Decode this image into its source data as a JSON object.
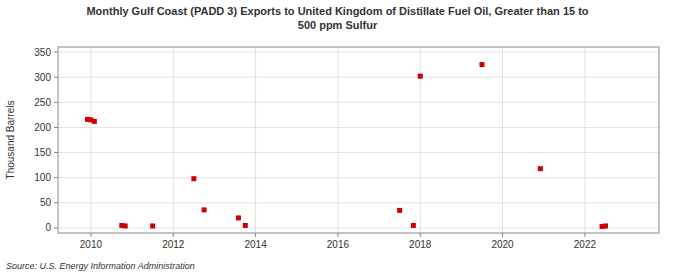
{
  "chart_data": {
    "type": "scatter",
    "title": "Monthly Gulf Coast (PADD 3) Exports to United Kingdom of Distillate Fuel Oil, Greater than 15 to\n500 ppm Sulfur",
    "ylabel": "Thousand Barrels",
    "annotations": [
      "Source: U.S. Energy Information Administration"
    ],
    "color": "#cc0000",
    "marker": "square",
    "grid": true,
    "xlim": [
      2009.2,
      2023.8
    ],
    "ylim": [
      -10,
      360
    ],
    "xticks": [
      2010,
      2012,
      2014,
      2016,
      2018,
      2020,
      2022
    ],
    "yticks": [
      0,
      50,
      100,
      150,
      200,
      250,
      300,
      350
    ],
    "x": [
      2009.917,
      2010.0,
      2010.083,
      2010.75,
      2010.833,
      2011.5,
      2012.5,
      2012.75,
      2013.583,
      2013.75,
      2017.5,
      2017.833,
      2018.0,
      2019.5,
      2020.917,
      2022.417,
      2022.5
    ],
    "values": [
      216,
      215,
      212,
      5,
      4,
      4,
      98,
      36,
      20,
      5,
      35,
      5,
      302,
      325,
      118,
      3,
      4
    ]
  }
}
